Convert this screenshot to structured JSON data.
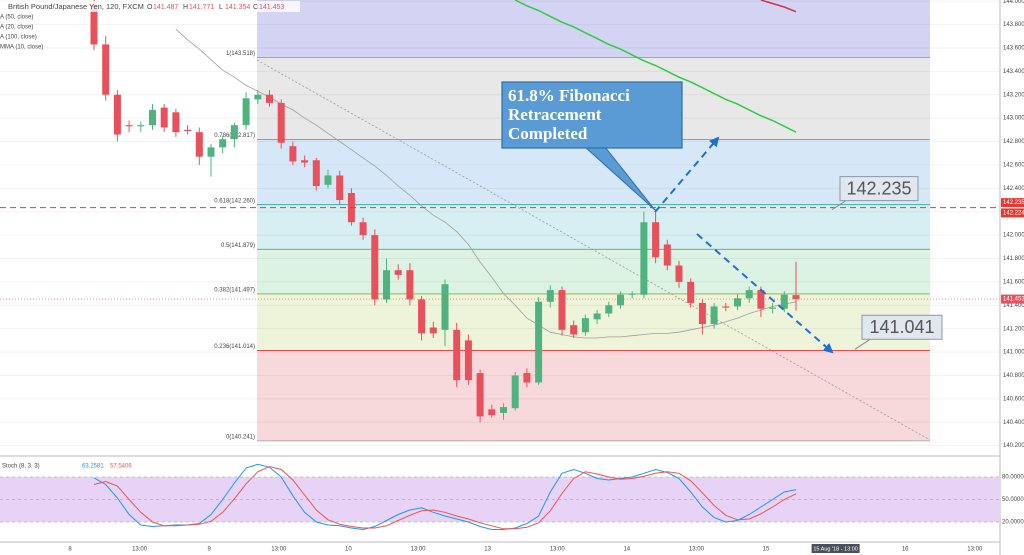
{
  "header": {
    "symbol": "British Pound/Japanese Yen, 120, FXCM",
    "ohlc_labels": [
      "O",
      "H",
      "L",
      "C"
    ],
    "ohlc_values": [
      "141.487",
      "141.771",
      "141.354",
      "141.453"
    ]
  },
  "indicators": [
    "A (50, close)",
    "A (20, close)",
    "A (100, close)",
    "MMA (10, close)"
  ],
  "chart_data": [
    {
      "type": "candlestick",
      "up_color": "#4fb37f",
      "down_color": "#e8505b",
      "ylim": [
        140.12,
        144.01
      ],
      "yticks": [
        {
          "value": 140.2,
          "label": "140.200"
        },
        {
          "value": 140.4,
          "label": "140.400"
        },
        {
          "value": 140.6,
          "label": "140.600"
        },
        {
          "value": 140.8,
          "label": "140.800"
        },
        {
          "value": 141,
          "label": "141.000"
        },
        {
          "value": 141.2,
          "label": "141.200"
        },
        {
          "value": 141.4,
          "label": "141.400"
        },
        {
          "value": 141.6,
          "label": "141.600"
        },
        {
          "value": 141.8,
          "label": "141.800"
        },
        {
          "value": 142,
          "label": "142.000"
        },
        {
          "value": 142.2,
          "label": "142.200"
        },
        {
          "value": 142.4,
          "label": "142.400"
        },
        {
          "value": 142.6,
          "label": "142.600"
        },
        {
          "value": 142.8,
          "label": "142.800"
        },
        {
          "value": 143,
          "label": "143.000"
        },
        {
          "value": 143.2,
          "label": "143.200"
        },
        {
          "value": 143.4,
          "label": "143.400"
        },
        {
          "value": 143.6,
          "label": "143.600"
        },
        {
          "value": 143.8,
          "label": "143.800"
        },
        {
          "value": 144,
          "label": "144.000"
        }
      ],
      "grid": true,
      "open": [
        143.97,
        143.63,
        143.2,
        142.94,
        142.93,
        142.94,
        143.09,
        143.05,
        142.9,
        142.88,
        142.67,
        142.75,
        142.82,
        142.94,
        143.16,
        143.2,
        143.13,
        142.76,
        142.64,
        142.64,
        142.43,
        142.51,
        142.36,
        142.11,
        142.0,
        141.45,
        141.7,
        141.7,
        141.45,
        141.21,
        141.19,
        141.19,
        141.1,
        140.82,
        140.51,
        140.48,
        140.52,
        140.82,
        140.74,
        141.43,
        141.53,
        141.23,
        141.17,
        141.28,
        141.33,
        141.4,
        141.49,
        141.49,
        142.11,
        141.92,
        141.74,
        141.6,
        141.42,
        141.24,
        141.39,
        141.39,
        141.46,
        141.53,
        141.37,
        141.37,
        141.487
      ],
      "high": [
        144.01,
        143.7,
        143.24,
        142.98,
        142.97,
        143.12,
        143.12,
        143.08,
        142.94,
        142.92,
        142.78,
        142.85,
        142.96,
        143.22,
        143.24,
        143.24,
        143.16,
        142.8,
        142.68,
        142.66,
        142.56,
        142.55,
        142.4,
        142.15,
        142.05,
        141.8,
        141.75,
        141.76,
        141.48,
        141.26,
        141.62,
        141.25,
        141.15,
        140.85,
        140.55,
        140.56,
        140.83,
        140.86,
        141.47,
        141.57,
        141.56,
        141.27,
        141.32,
        141.36,
        141.43,
        141.52,
        141.52,
        142.2,
        142.22,
        141.96,
        141.78,
        141.63,
        141.45,
        141.42,
        141.42,
        141.5,
        141.56,
        141.56,
        141.42,
        141.52,
        141.771
      ],
      "low": [
        143.58,
        143.15,
        142.8,
        142.88,
        142.88,
        142.9,
        142.88,
        142.84,
        142.86,
        142.6,
        142.5,
        142.7,
        142.75,
        142.9,
        143.12,
        143.1,
        142.74,
        142.6,
        142.58,
        142.38,
        142.4,
        142.26,
        142.08,
        141.96,
        141.4,
        141.42,
        141.62,
        141.4,
        141.1,
        141.12,
        141.05,
        140.7,
        140.72,
        140.4,
        140.44,
        140.42,
        140.5,
        140.7,
        140.72,
        141.38,
        141.14,
        141.12,
        141.14,
        141.24,
        141.3,
        141.37,
        141.46,
        141.46,
        141.76,
        141.7,
        141.55,
        141.38,
        141.15,
        141.2,
        141.35,
        141.36,
        141.42,
        141.3,
        141.33,
        141.34,
        141.354
      ],
      "close": [
        143.63,
        143.2,
        142.86,
        142.93,
        142.94,
        143.07,
        142.92,
        142.88,
        142.89,
        142.67,
        142.75,
        142.82,
        142.94,
        143.17,
        143.2,
        143.13,
        142.79,
        142.63,
        142.62,
        142.42,
        142.51,
        142.3,
        142.11,
        142.0,
        141.45,
        141.7,
        141.66,
        141.45,
        141.16,
        141.16,
        141.58,
        140.76,
        140.76,
        140.45,
        140.46,
        140.53,
        140.8,
        140.74,
        141.43,
        141.53,
        141.19,
        141.15,
        141.29,
        141.33,
        141.4,
        141.49,
        141.5,
        142.11,
        141.81,
        141.74,
        141.6,
        141.42,
        141.24,
        141.39,
        141.38,
        141.46,
        141.53,
        141.37,
        141.38,
        141.49,
        141.453
      ],
      "overlays": [
        {
          "color": "#9e9e9e",
          "values": [
            null,
            null,
            null,
            null,
            null,
            null,
            null,
            143.76,
            143.67,
            143.59,
            143.5,
            143.41,
            143.35,
            143.28,
            143.23,
            143.18,
            143.12,
            143.07,
            143.0,
            142.94,
            142.87,
            142.8,
            142.73,
            142.66,
            142.59,
            142.51,
            142.42,
            142.34,
            142.25,
            142.17,
            142.11,
            142.03,
            141.92,
            141.77,
            141.64,
            141.5,
            141.4,
            141.29,
            141.23,
            141.17,
            141.15,
            141.13,
            141.12,
            141.12,
            141.13,
            141.13,
            141.14,
            141.15,
            141.16,
            141.16,
            141.17,
            141.19,
            141.21,
            141.23,
            141.26,
            141.29,
            141.33,
            141.36,
            141.39,
            141.41,
            141.43
          ]
        },
        {
          "color": "#2ecc40",
          "values": [
            null,
            null,
            null,
            null,
            null,
            null,
            null,
            null,
            null,
            null,
            null,
            null,
            null,
            null,
            null,
            null,
            null,
            null,
            null,
            null,
            null,
            null,
            null,
            null,
            null,
            null,
            null,
            null,
            null,
            null,
            null,
            null,
            null,
            null,
            null,
            null,
            144.01,
            143.96,
            143.92,
            143.87,
            143.82,
            143.78,
            143.73,
            143.68,
            143.63,
            143.59,
            143.54,
            143.49,
            143.45,
            143.4,
            143.35,
            143.31,
            143.26,
            143.21,
            143.16,
            143.12,
            143.07,
            143.02,
            142.98,
            142.93,
            142.88
          ]
        },
        {
          "color": "#d6304a",
          "values": [
            null,
            null,
            null,
            null,
            null,
            null,
            null,
            null,
            null,
            null,
            null,
            null,
            null,
            null,
            null,
            null,
            null,
            null,
            null,
            null,
            null,
            null,
            null,
            null,
            null,
            null,
            null,
            null,
            null,
            null,
            null,
            null,
            null,
            null,
            null,
            null,
            null,
            null,
            null,
            null,
            null,
            null,
            null,
            null,
            null,
            null,
            null,
            null,
            null,
            null,
            null,
            null,
            null,
            null,
            null,
            null,
            null,
            144.01,
            143.98,
            143.95,
            143.91
          ]
        }
      ],
      "fib_top_color": "#d3d4f3",
      "fib_levels": [
        {
          "label": "1(143.518)",
          "value": 143.518,
          "color": "#9e9e9e",
          "band_color": "#e8e8e8"
        },
        {
          "label": "0.786(142.817)",
          "value": 142.817,
          "color": "#42a5f5",
          "band_color": "#d6e8f7"
        },
        {
          "label": "0.618(142.260)",
          "value": 142.26,
          "color": "#26a69a",
          "band_color": "#d7eff2"
        },
        {
          "label": "0.5(141.879)",
          "value": 141.879,
          "color": "#43a047",
          "band_color": "#dcf2e3"
        },
        {
          "label": "0.382(141.497)",
          "value": 141.497,
          "color": "#7cb342",
          "band_color": "#eef4da"
        },
        {
          "label": "0.236(141.014)",
          "value": 141.014,
          "color": "#e53935",
          "band_color": "#f7d8db"
        },
        {
          "label": "0(140.241)",
          "value": 140.241,
          "color": "#9e9e9e"
        }
      ],
      "annotations": [
        {
          "text_lines": [
            "61.8% Fibonacci",
            "Retracement",
            "Completed"
          ]
        },
        {
          "value": 142.235,
          "label": "142.235",
          "line_color": "#e53935"
        },
        {
          "value": 141.041,
          "label": "141.041"
        }
      ],
      "price_labels": [
        {
          "value": 142.235,
          "label": "142.235",
          "color": "#e53935"
        },
        {
          "value": 142.224,
          "label": "142.224",
          "color": "#e53935"
        },
        {
          "value": 141.453,
          "label": "141.453",
          "color": "#e8505b"
        }
      ],
      "xtick_labels": [
        "8",
        "13:00",
        "9",
        "13:00",
        "10",
        "13:00",
        "13",
        "13:00",
        "14",
        "13:00",
        "15",
        "15 Aug '18 - 13:00",
        "16",
        "13:00"
      ]
    },
    {
      "type": "line",
      "title": "Stoch (8, 3, 3)",
      "ylim": [
        0,
        100
      ],
      "yticks": [
        {
          "value": 20,
          "label": "20.0000"
        },
        {
          "value": 50,
          "label": "50.0000"
        },
        {
          "value": 80,
          "label": "80.0000"
        }
      ],
      "band_color": "#e6d3f5",
      "series": [
        {
          "color": "#2196f3",
          "current": "63.2581",
          "values": [
            79,
            70,
            52,
            30,
            16,
            14,
            15,
            16,
            16,
            18,
            30,
            50,
            72,
            92,
            97,
            93,
            80,
            55,
            33,
            20,
            16,
            15,
            12,
            10,
            14,
            22,
            30,
            36,
            39,
            33,
            28,
            24,
            20,
            14,
            10,
            10,
            12,
            18,
            28,
            60,
            85,
            90,
            85,
            78,
            76,
            78,
            80,
            85,
            90,
            86,
            78,
            60,
            40,
            26,
            20,
            22,
            30,
            40,
            50,
            60,
            63.26
          ]
        },
        {
          "color": "#ef5350",
          "current": "57.5406",
          "values": [
            70,
            74,
            68,
            50,
            33,
            20,
            15,
            15,
            16,
            17,
            21,
            33,
            51,
            71,
            87,
            94,
            90,
            76,
            56,
            36,
            23,
            17,
            14,
            12,
            12,
            15,
            22,
            29,
            35,
            36,
            33,
            28,
            24,
            19,
            15,
            11,
            11,
            13,
            19,
            35,
            58,
            78,
            87,
            84,
            80,
            77,
            78,
            81,
            85,
            87,
            85,
            75,
            59,
            42,
            29,
            23,
            24,
            31,
            40,
            50,
            57.54
          ]
        }
      ]
    }
  ]
}
